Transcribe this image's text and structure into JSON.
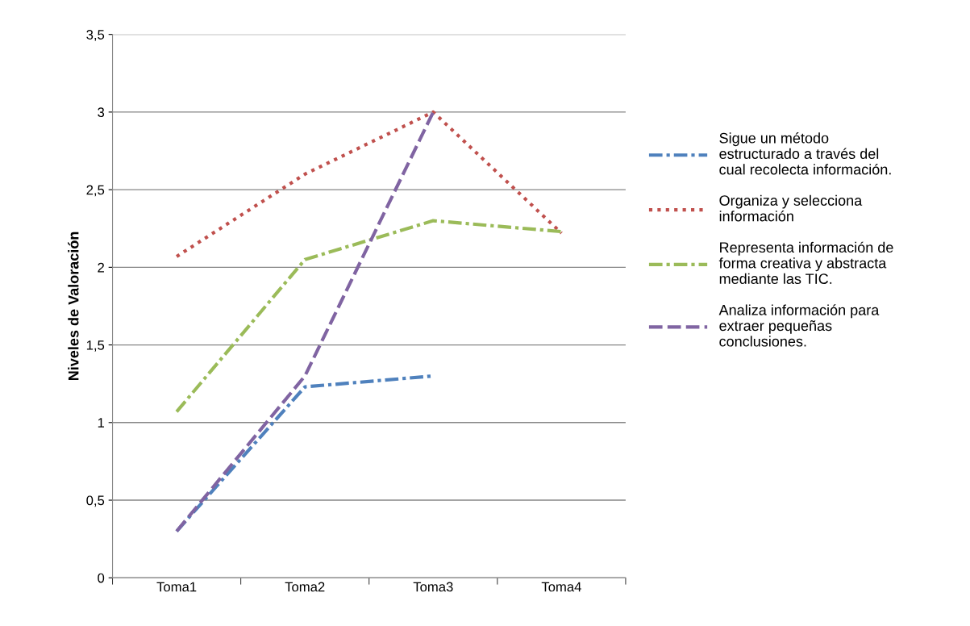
{
  "chart_data": {
    "type": "line",
    "ylabel": "Niveles de Valoración",
    "categories": [
      "Toma1",
      "Toma2",
      "Toma3",
      "Toma4"
    ],
    "series": [
      {
        "name": "Sigue un método estructurado a través del cual recolecta información.",
        "color": "#4f81bd",
        "line_style": "dashdot",
        "values": [
          0.3,
          1.23,
          1.3,
          null
        ]
      },
      {
        "name": "Organiza y selecciona información",
        "color": "#c0504d",
        "line_style": "dotted",
        "values": [
          2.07,
          2.6,
          3.0,
          2.22
        ]
      },
      {
        "name": "Representa información de forma creativa y abstracta mediante las TIC.",
        "color": "#9bbb59",
        "line_style": "dashdot",
        "values": [
          1.07,
          2.05,
          2.3,
          2.23
        ]
      },
      {
        "name": "Analiza información para extraer pequeñas conclusiones.",
        "color": "#8064a2",
        "line_style": "dashed",
        "values": [
          0.3,
          1.3,
          3.0,
          null
        ]
      }
    ],
    "ylim": [
      0,
      3.5
    ],
    "yticks": [
      {
        "value": 0,
        "label": "0"
      },
      {
        "value": 0.5,
        "label": "0,5"
      },
      {
        "value": 1,
        "label": "1"
      },
      {
        "value": 1.5,
        "label": "1,5"
      },
      {
        "value": 2,
        "label": "2"
      },
      {
        "value": 2.5,
        "label": "2,5"
      },
      {
        "value": 3,
        "label": "3"
      },
      {
        "value": 3.5,
        "label": "3,5"
      }
    ],
    "grid": "y",
    "legend": "right",
    "marker": "none"
  }
}
